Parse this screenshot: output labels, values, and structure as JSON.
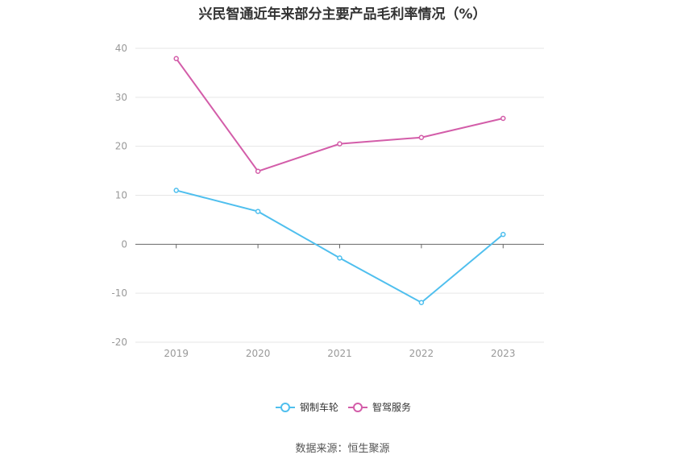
{
  "chart_data": {
    "type": "line",
    "title": "兴民智通近年来部分主要产品毛利率情况（%）",
    "categories": [
      "2019",
      "2020",
      "2021",
      "2022",
      "2023"
    ],
    "series": [
      {
        "name": "钢制车轮",
        "values": [
          11.0,
          6.7,
          -2.8,
          -11.9,
          2.0
        ],
        "color": "#4fbfee"
      },
      {
        "name": "智驾服务",
        "values": [
          37.9,
          14.9,
          20.5,
          21.8,
          25.7
        ],
        "color": "#d35da9"
      }
    ],
    "yticks": [
      "40",
      "30",
      "20",
      "10",
      "0",
      "-10",
      "-20"
    ],
    "ylim": [
      -20,
      40
    ],
    "xlabel": "",
    "ylabel": "",
    "grid": true,
    "legend_position": "bottom-center"
  },
  "source": "数据来源：恒生聚源"
}
